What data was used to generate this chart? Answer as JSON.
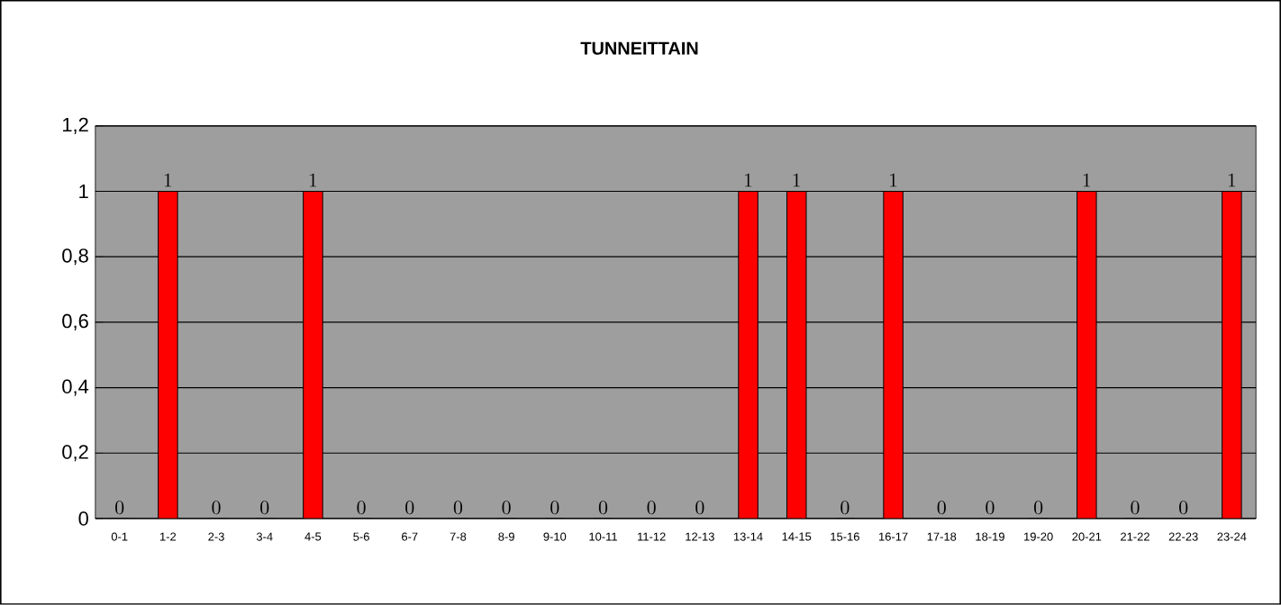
{
  "chart_data": {
    "type": "bar",
    "title": "TUNNEITTAIN",
    "categories": [
      "0-1",
      "1-2",
      "2-3",
      "3-4",
      "4-5",
      "5-6",
      "6-7",
      "7-8",
      "8-9",
      "9-10",
      "10-11",
      "11-12",
      "12-13",
      "13-14",
      "14-15",
      "15-16",
      "16-17",
      "17-18",
      "18-19",
      "19-20",
      "20-21",
      "21-22",
      "22-23",
      "23-24"
    ],
    "values": [
      0,
      1,
      0,
      0,
      1,
      0,
      0,
      0,
      0,
      0,
      0,
      0,
      0,
      1,
      1,
      0,
      1,
      0,
      0,
      0,
      1,
      0,
      0,
      1
    ],
    "color": "#ff0000",
    "ylim": [
      0,
      1.2
    ],
    "yticks": [
      0,
      {
        "value": 0.2,
        "label": "0,2"
      },
      {
        "value": 0.4,
        "label": "0,4"
      },
      {
        "value": 0.6,
        "label": "0,6"
      },
      {
        "value": 0.8,
        "label": "0,8"
      },
      1,
      {
        "value": 1.2,
        "label": "1,2"
      }
    ],
    "grid": "y",
    "data_labels": true
  }
}
